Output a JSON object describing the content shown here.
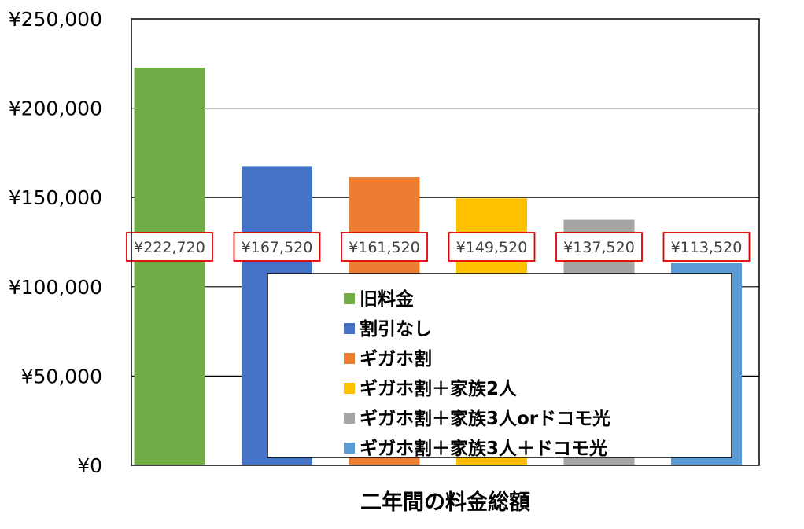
{
  "chart_data": {
    "type": "bar",
    "title": "",
    "xlabel": "二年間の料金総額",
    "ylabel": "",
    "ylim": [
      0,
      250000
    ],
    "yticks": [
      0,
      50000,
      100000,
      150000,
      200000,
      250000
    ],
    "ytick_labels": [
      "¥0",
      "¥50,000",
      "¥100,000",
      "¥150,000",
      "¥200,000",
      "¥250,000"
    ],
    "grid": true,
    "legend_position": "bottom-center (inside plot)",
    "series": [
      {
        "name": "旧料金",
        "value": 222720,
        "label": "¥222,720",
        "color": "#70AD47"
      },
      {
        "name": "割引なし",
        "value": 167520,
        "label": "¥167,520",
        "color": "#4472C4"
      },
      {
        "name": "ギガホ割",
        "value": 161520,
        "label": "¥161,520",
        "color": "#ED7D31"
      },
      {
        "name": "ギガホ割＋家族2人",
        "value": 149520,
        "label": "¥149,520",
        "color": "#FFC000"
      },
      {
        "name": "ギガホ割＋家族3人orドコモ光",
        "value": 137520,
        "label": "¥137,520",
        "color": "#A5A5A5"
      },
      {
        "name": "ギガホ割＋家族3人＋ドコモ光",
        "value": 113520,
        "label": "¥113,520",
        "color": "#5B9BD5"
      }
    ],
    "data_label_box_color": "#E00000"
  }
}
